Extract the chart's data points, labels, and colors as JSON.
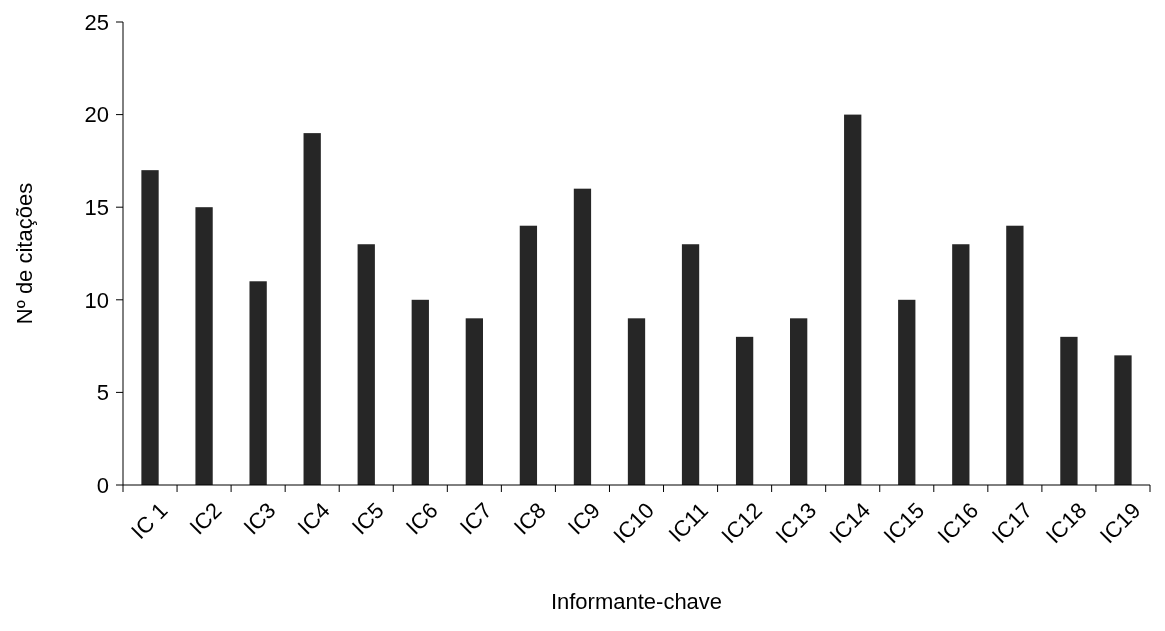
{
  "chart_data": {
    "type": "bar",
    "xlabel": "Informante-chave",
    "ylabel": "Nº de citações",
    "categories": [
      "IC 1",
      "IC2",
      "IC3",
      "IC4",
      "IC5",
      "IC6",
      "IC7",
      "IC8",
      "IC9",
      "IC10",
      "IC11",
      "IC12",
      "IC13",
      "IC14",
      "IC15",
      "IC16",
      "IC17",
      "IC18",
      "IC19"
    ],
    "values": [
      17,
      15,
      11,
      19,
      13,
      10,
      9,
      14,
      16,
      9,
      13,
      8,
      9,
      20,
      10,
      13,
      14,
      8,
      7
    ],
    "color": "#262626",
    "ylim": [
      0,
      25
    ],
    "yticks": [
      0,
      5,
      10,
      15,
      20,
      25
    ],
    "grid": false
  }
}
